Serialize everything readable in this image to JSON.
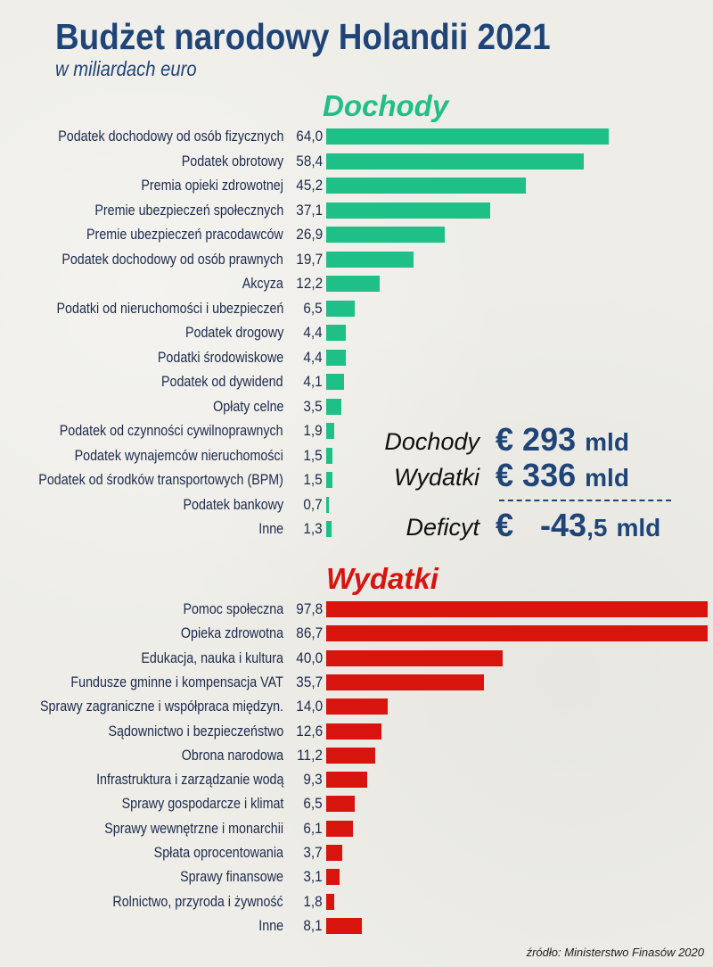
{
  "title": "Budżet narodowy Holandii 2021",
  "subtitle": "w miliardach euro",
  "colors": {
    "title": "#1f4477",
    "income": "#1fbf88",
    "expense": "#d8140f",
    "label": "#1c2a4c"
  },
  "chart_data": [
    {
      "type": "bar",
      "orientation": "horizontal",
      "title": "Dochody",
      "categories": [
        "Podatek dochodowy od osób fizycznych",
        "Podatek obrotowy",
        "Premia opieki zdrowotnej",
        "Premie ubezpieczeń społecznych",
        "Premie ubezpieczeń pracodawców",
        "Podatek dochodowy od osób prawnych",
        "Akcyza",
        "Podatki od nieruchomości i ubezpieczeń",
        "Podatek drogowy",
        "Podatki środowiskowe",
        "Podatek od dywidend",
        "Opłaty celne",
        "Podatek od czynności cywilnoprawnych",
        "Podatek wynajemców nieruchomości",
        "Podatek od środków transportowych (BPM)",
        "Podatek bankowy",
        "Inne"
      ],
      "values": [
        64.0,
        58.4,
        45.2,
        37.1,
        26.9,
        19.7,
        12.2,
        6.5,
        4.4,
        4.4,
        4.1,
        3.5,
        1.9,
        1.5,
        1.5,
        0.7,
        1.3
      ],
      "value_labels": [
        "64,0",
        "58,4",
        "45,2",
        "37,1",
        "26,9",
        "19,7",
        "12,2",
        "6,5",
        "4,4",
        "4,4",
        "4,1",
        "3,5",
        "1,9",
        "1,5",
        "1,5",
        "0,7",
        "1,3"
      ],
      "color": "#1fbf88"
    },
    {
      "type": "bar",
      "orientation": "horizontal",
      "title": "Wydatki",
      "categories": [
        "Pomoc społeczna",
        "Opieka zdrowotna",
        "Edukacja, nauka i kultura",
        "Fundusze gminne i kompensacja VAT",
        "Sprawy zagraniczne i współpraca międzyn.",
        "Sądownictwo i bezpieczeństwo",
        "Obrona narodowa",
        "Infrastruktura i zarządzanie wodą",
        "Sprawy gospodarcze i klimat",
        "Sprawy wewnętrzne i monarchii",
        "Spłata oprocentowania",
        "Sprawy finansowe",
        "Rolnictwo, przyroda i żywność",
        "Inne"
      ],
      "values": [
        97.8,
        86.7,
        40.0,
        35.7,
        14.0,
        12.6,
        11.2,
        9.3,
        6.5,
        6.1,
        3.7,
        3.1,
        1.8,
        8.1
      ],
      "value_labels": [
        "97,8",
        "86,7",
        "40,0",
        "35,7",
        "14,0",
        "12,6",
        "11,2",
        "9,3",
        "6,5",
        "6,1",
        "3,7",
        "3,1",
        "1,8",
        "8,1"
      ],
      "color": "#d8140f"
    }
  ],
  "summary": {
    "income_label": "Dochody",
    "income_prefix": "€",
    "income_value": "293",
    "income_unit": "mld",
    "expense_label": "Wydatki",
    "expense_prefix": "€",
    "expense_value": "336",
    "expense_unit": "mld",
    "deficit_label": "Deficyt",
    "deficit_prefix": "€",
    "deficit_value": "-43",
    "deficit_decimal": ",5",
    "deficit_unit": "mld"
  },
  "source": "źródło: Ministerstwo Finasów 2020"
}
